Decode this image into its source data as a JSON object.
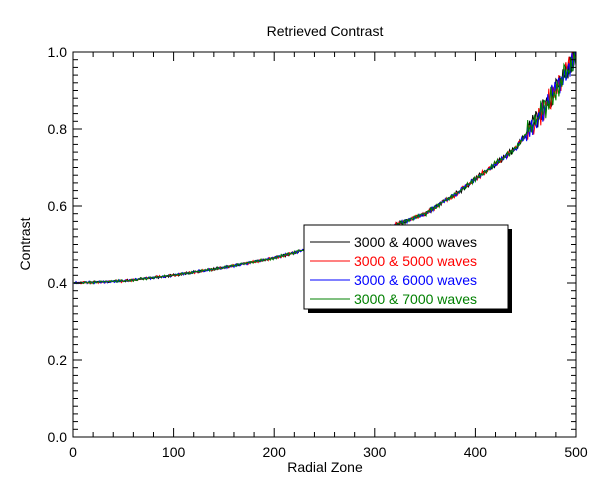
{
  "chart_data": {
    "type": "line",
    "title": "Retrieved Contrast",
    "xlabel": "Radial Zone",
    "ylabel": "Contrast",
    "xlim": [
      0,
      500
    ],
    "ylim": [
      0.0,
      1.0
    ],
    "x_ticks": [
      0,
      100,
      200,
      300,
      400,
      500
    ],
    "x_tick_labels": [
      "0",
      "100",
      "200",
      "300",
      "400",
      "500"
    ],
    "y_ticks": [
      0.0,
      0.2,
      0.4,
      0.6,
      0.8,
      1.0
    ],
    "y_tick_labels": [
      "0.0",
      "0.2",
      "0.4",
      "0.6",
      "0.8",
      "1.0"
    ],
    "grid": false,
    "legend_position": "center-right",
    "trend_points": {
      "x": [
        0,
        50,
        100,
        150,
        200,
        250,
        300,
        350,
        380,
        400,
        420,
        440,
        460,
        475,
        490,
        500
      ],
      "y": [
        0.4,
        0.405,
        0.42,
        0.44,
        0.465,
        0.5,
        0.53,
        0.58,
        0.63,
        0.67,
        0.71,
        0.75,
        0.82,
        0.88,
        0.95,
        0.99
      ]
    },
    "series": [
      {
        "name": "3000 & 4000 waves",
        "color": "#000000"
      },
      {
        "name": "3000 & 5000 waves",
        "color": "#ff0000"
      },
      {
        "name": "3000 & 6000 waves",
        "color": "#0000ff"
      },
      {
        "name": "3000 & 7000 waves",
        "color": "#008000"
      }
    ]
  }
}
